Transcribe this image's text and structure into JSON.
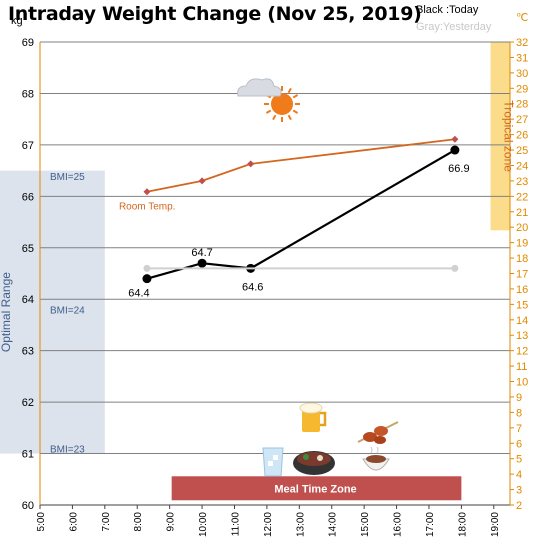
{
  "title": "Intraday Weight Change (Nov 25, 2019)",
  "legend": {
    "today": "Black :Today",
    "yesterday": "Gray:Yesterday"
  },
  "units": {
    "left": "kg",
    "right": "℃"
  },
  "colors": {
    "today": "#000000",
    "yesterday": "#d0d0d0",
    "room_temp": "#d4661f",
    "room_temp_marker": "#c0504d",
    "optimal_band": "#dde3ec",
    "tropical_band": "#fbdc8a",
    "meal_zone": "#c0504d",
    "right_axis": "#e08a00",
    "grid": "#808080"
  },
  "chart_data": {
    "type": "line",
    "x_ticks": [
      "5:00",
      "6:00",
      "7:00",
      "8:00",
      "9:00",
      "10:00",
      "11:00",
      "12:00",
      "13:00",
      "14:00",
      "15:00",
      "16:00",
      "17:00",
      "18:00",
      "19:00"
    ],
    "x_range": [
      5,
      19.5
    ],
    "y_left": {
      "unit": "kg",
      "ticks": [
        60,
        61,
        62,
        63,
        64,
        65,
        66,
        67,
        68,
        69
      ],
      "range": [
        60,
        69
      ]
    },
    "y_right": {
      "unit": "℃",
      "ticks": [
        2,
        3,
        4,
        5,
        6,
        7,
        8,
        9,
        10,
        11,
        12,
        13,
        14,
        15,
        16,
        17,
        18,
        19,
        20,
        21,
        22,
        23,
        24,
        25,
        26,
        27,
        28,
        29,
        30,
        31,
        32
      ],
      "range": [
        2,
        32
      ]
    },
    "series": [
      {
        "name": "Today",
        "color": "#000000",
        "x": [
          8.3,
          10.0,
          11.5,
          17.8
        ],
        "y": [
          64.4,
          64.7,
          64.6,
          66.9
        ],
        "labels": [
          "64.4",
          "64.7",
          "64.6",
          "66.9"
        ]
      },
      {
        "name": "Yesterday",
        "color": "#d0d0d0",
        "x": [
          8.3,
          17.8
        ],
        "y": [
          64.6,
          64.6
        ]
      },
      {
        "name": "Room Temp.",
        "axis": "right",
        "color": "#d4661f",
        "x": [
          8.3,
          10.0,
          11.5,
          17.8
        ],
        "y": [
          22.3,
          23.0,
          24.1,
          25.7
        ]
      }
    ],
    "bands": {
      "optimal_range": {
        "label": "Optimal Range",
        "y": [
          61,
          66.5
        ]
      },
      "tropical_zone": {
        "label": "Tropical zone",
        "temp": [
          19.8,
          32
        ]
      },
      "meal_time_zone": {
        "label": "Meal Time Zone",
        "x": [
          9.0,
          18.0
        ]
      }
    },
    "bmi_markers": [
      {
        "label": "BMI=25",
        "y": 66.4
      },
      {
        "label": "BMI=24",
        "y": 63.8
      },
      {
        "label": "BMI=23",
        "y": 61.1
      }
    ],
    "icons": [
      "sun-cloud-icon",
      "beer-icon",
      "water-glass-icon",
      "hotpot-icon",
      "yakitori-icon",
      "soup-bowl-icon"
    ],
    "grid": true
  }
}
